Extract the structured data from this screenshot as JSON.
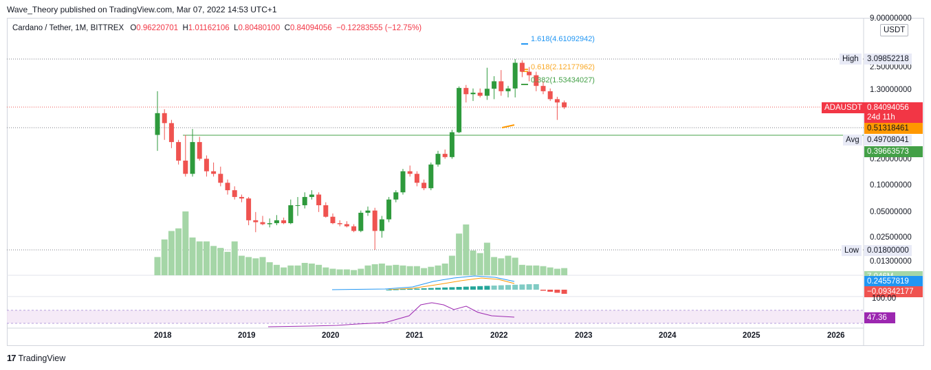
{
  "header": {
    "publish_line": "Wave_Theory published on TradingView.com, Mar 07, 2022 14:53 UTC+1"
  },
  "legend": {
    "symbol": "Cardano / Tether, 1M, BITTREX",
    "o_label": "O",
    "o_value": "0.96220701",
    "h_label": "H",
    "h_value": "1.01162106",
    "l_label": "L",
    "l_value": "0.80480100",
    "c_label": "C",
    "c_value": "0.84094056",
    "change": "−0.12283555 (−12.75%)"
  },
  "price_axis": {
    "currency": "USDT",
    "ticks": [
      "9.00000000",
      "2.50000000",
      "1.30000000",
      "0.20000000",
      "0.10000000",
      "0.05000000",
      "0.02500000",
      "0.01300000"
    ],
    "high_label": "High",
    "high_value": "3.09852218",
    "low_label": "Low",
    "low_value": "0.01800000",
    "avg_label": "Avg",
    "avg_value": "0.49708041",
    "symbol_tag": "ADAUSDT",
    "last_price": "0.84094056",
    "countdown": "24d 11h",
    "orange_tag": "0.51318461",
    "green_tag": "0.39663573",
    "volume_tag": "7.046M",
    "macd_tag1": "0.24557819",
    "macd_tag2": "−0.09342177",
    "rsi_upper": "100.00",
    "rsi_value": "47.36"
  },
  "fib_levels": {
    "f1618": "1.618(4.61092942)",
    "f0618": "0.618(2.12177962)",
    "f0382": "0.382(1.53434027)"
  },
  "time_axis": {
    "labels": [
      "2018",
      "2019",
      "2020",
      "2021",
      "2022",
      "2023",
      "2024",
      "2025",
      "2026"
    ]
  },
  "footer": {
    "brand": "TradingView"
  },
  "colors": {
    "up": "#26a69a",
    "up_candle": "#2e9a3c",
    "down": "#ef5350",
    "volume": "#a5d6a7",
    "fib1618": "#2196f3",
    "fib0618": "#f9a825",
    "fib0382": "#43a047",
    "rsi": "#9c27b0"
  },
  "chart_data": {
    "type": "candlestick",
    "title": "Cardano / Tether, 1M, BITTREX",
    "scale": "log",
    "ylim": [
      0.012,
      9.0
    ],
    "candles": [
      {
        "t": "2017-12",
        "o": 0.4,
        "h": 1.3,
        "l": 0.26,
        "c": 0.72
      },
      {
        "t": "2018-01",
        "o": 0.72,
        "h": 0.8,
        "l": 0.35,
        "c": 0.55
      },
      {
        "t": "2018-02",
        "o": 0.55,
        "h": 0.6,
        "l": 0.28,
        "c": 0.33
      },
      {
        "t": "2018-03",
        "o": 0.33,
        "h": 0.35,
        "l": 0.18,
        "c": 0.2
      },
      {
        "t": "2018-04",
        "o": 0.2,
        "h": 0.4,
        "l": 0.13,
        "c": 0.14
      },
      {
        "t": "2018-05",
        "o": 0.14,
        "h": 0.47,
        "l": 0.13,
        "c": 0.33
      },
      {
        "t": "2018-06",
        "o": 0.33,
        "h": 0.38,
        "l": 0.2,
        "c": 0.21
      },
      {
        "t": "2018-07",
        "o": 0.21,
        "h": 0.23,
        "l": 0.13,
        "c": 0.15
      },
      {
        "t": "2018-08",
        "o": 0.15,
        "h": 0.19,
        "l": 0.13,
        "c": 0.14
      },
      {
        "t": "2018-09",
        "o": 0.14,
        "h": 0.17,
        "l": 0.1,
        "c": 0.11
      },
      {
        "t": "2018-10",
        "o": 0.11,
        "h": 0.12,
        "l": 0.08,
        "c": 0.09
      },
      {
        "t": "2018-11",
        "o": 0.09,
        "h": 0.1,
        "l": 0.07,
        "c": 0.075
      },
      {
        "t": "2018-12",
        "o": 0.075,
        "h": 0.08,
        "l": 0.065,
        "c": 0.072
      },
      {
        "t": "2019-01",
        "o": 0.072,
        "h": 0.075,
        "l": 0.035,
        "c": 0.04
      },
      {
        "t": "2019-02",
        "o": 0.04,
        "h": 0.05,
        "l": 0.029,
        "c": 0.038
      },
      {
        "t": "2019-03",
        "o": 0.038,
        "h": 0.045,
        "l": 0.035,
        "c": 0.036
      },
      {
        "t": "2019-04",
        "o": 0.036,
        "h": 0.042,
        "l": 0.033,
        "c": 0.037
      },
      {
        "t": "2019-05",
        "o": 0.037,
        "h": 0.046,
        "l": 0.035,
        "c": 0.04
      },
      {
        "t": "2019-06",
        "o": 0.04,
        "h": 0.043,
        "l": 0.036,
        "c": 0.037
      },
      {
        "t": "2019-07",
        "o": 0.037,
        "h": 0.07,
        "l": 0.036,
        "c": 0.06
      },
      {
        "t": "2019-08",
        "o": 0.06,
        "h": 0.075,
        "l": 0.045,
        "c": 0.06
      },
      {
        "t": "2019-09",
        "o": 0.06,
        "h": 0.085,
        "l": 0.055,
        "c": 0.075
      },
      {
        "t": "2019-10",
        "o": 0.075,
        "h": 0.09,
        "l": 0.07,
        "c": 0.08
      },
      {
        "t": "2019-11",
        "o": 0.08,
        "h": 0.085,
        "l": 0.05,
        "c": 0.06
      },
      {
        "t": "2019-12",
        "o": 0.06,
        "h": 0.065,
        "l": 0.043,
        "c": 0.044
      },
      {
        "t": "2020-01",
        "o": 0.044,
        "h": 0.048,
        "l": 0.036,
        "c": 0.037
      },
      {
        "t": "2020-02",
        "o": 0.037,
        "h": 0.04,
        "l": 0.034,
        "c": 0.036
      },
      {
        "t": "2020-03",
        "o": 0.036,
        "h": 0.039,
        "l": 0.033,
        "c": 0.034
      },
      {
        "t": "2020-04",
        "o": 0.034,
        "h": 0.036,
        "l": 0.029,
        "c": 0.03
      },
      {
        "t": "2020-05",
        "o": 0.03,
        "h": 0.052,
        "l": 0.029,
        "c": 0.049
      },
      {
        "t": "2020-06",
        "o": 0.049,
        "h": 0.058,
        "l": 0.045,
        "c": 0.052
      },
      {
        "t": "2020-07",
        "o": 0.052,
        "h": 0.056,
        "l": 0.018,
        "c": 0.03
      },
      {
        "t": "2020-08",
        "o": 0.03,
        "h": 0.045,
        "l": 0.025,
        "c": 0.041
      },
      {
        "t": "2020-09",
        "o": 0.041,
        "h": 0.075,
        "l": 0.038,
        "c": 0.07
      },
      {
        "t": "2020-10",
        "o": 0.07,
        "h": 0.09,
        "l": 0.065,
        "c": 0.085
      },
      {
        "t": "2020-11",
        "o": 0.085,
        "h": 0.16,
        "l": 0.08,
        "c": 0.15
      },
      {
        "t": "2020-12",
        "o": 0.15,
        "h": 0.175,
        "l": 0.13,
        "c": 0.14
      },
      {
        "t": "2021-01",
        "o": 0.14,
        "h": 0.15,
        "l": 0.1,
        "c": 0.11
      },
      {
        "t": "2021-02",
        "o": 0.11,
        "h": 0.12,
        "l": 0.09,
        "c": 0.095
      },
      {
        "t": "2021-03",
        "o": 0.095,
        "h": 0.19,
        "l": 0.09,
        "c": 0.18
      },
      {
        "t": "2021-04",
        "o": 0.18,
        "h": 0.26,
        "l": 0.17,
        "c": 0.24
      },
      {
        "t": "2021-05",
        "o": 0.24,
        "h": 0.27,
        "l": 0.21,
        "c": 0.22
      },
      {
        "t": "2021-06",
        "o": 0.22,
        "h": 0.46,
        "l": 0.21,
        "c": 0.43
      },
      {
        "t": "2021-07",
        "o": 0.43,
        "h": 1.48,
        "l": 0.42,
        "c": 1.42
      },
      {
        "t": "2021-08",
        "o": 1.42,
        "h": 1.54,
        "l": 0.96,
        "c": 1.2
      },
      {
        "t": "2021-09",
        "o": 1.2,
        "h": 1.4,
        "l": 1.0,
        "c": 1.25
      },
      {
        "t": "2021-10",
        "o": 1.25,
        "h": 1.4,
        "l": 1.1,
        "c": 1.15
      },
      {
        "t": "2021-11",
        "o": 1.15,
        "h": 2.45,
        "l": 1.03,
        "c": 1.39
      },
      {
        "t": "2021-12",
        "o": 1.39,
        "h": 1.95,
        "l": 1.05,
        "c": 1.7
      },
      {
        "t": "2022-01",
        "o": 1.7,
        "h": 2.3,
        "l": 1.15,
        "c": 1.3
      },
      {
        "t": "2022-02",
        "o": 1.3,
        "h": 1.5,
        "l": 1.1,
        "c": 1.4
      },
      {
        "t": "2022-03",
        "o": 1.4,
        "h": 3.099,
        "l": 1.1,
        "c": 2.8
      },
      {
        "t": "2022-04",
        "o": 2.8,
        "h": 3.0,
        "l": 1.9,
        "c": 2.2
      },
      {
        "t": "2022-05",
        "o": 2.2,
        "h": 2.5,
        "l": 1.7,
        "c": 2.0
      },
      {
        "t": "2022-06",
        "o": 2.0,
        "h": 2.2,
        "l": 1.3,
        "c": 1.5
      },
      {
        "t": "2022-07",
        "o": 1.5,
        "h": 1.7,
        "l": 1.2,
        "c": 1.3
      },
      {
        "t": "2022-08",
        "o": 1.3,
        "h": 1.4,
        "l": 1.0,
        "c": 1.05
      },
      {
        "t": "2022-09",
        "o": 1.05,
        "h": 1.12,
        "l": 0.6,
        "c": 0.96
      },
      {
        "t": "2022-10",
        "o": 0.962,
        "h": 1.012,
        "l": 0.805,
        "c": 0.841
      }
    ],
    "volume": [
      0.28,
      0.55,
      0.68,
      0.72,
      0.98,
      0.58,
      0.52,
      0.52,
      0.45,
      0.42,
      0.36,
      0.52,
      0.3,
      0.28,
      0.26,
      0.28,
      0.2,
      0.16,
      0.12,
      0.15,
      0.15,
      0.19,
      0.18,
      0.16,
      0.12,
      0.1,
      0.09,
      0.09,
      0.08,
      0.1,
      0.15,
      0.17,
      0.18,
      0.15,
      0.16,
      0.15,
      0.14,
      0.14,
      0.11,
      0.13,
      0.15,
      0.18,
      0.3,
      0.64,
      0.78,
      0.38,
      0.34,
      0.5,
      0.28,
      0.26,
      0.3,
      0.27,
      0.16,
      0.15,
      0.15,
      0.14,
      0.12,
      0.1,
      0.11,
      0.04
    ],
    "avg_line": 0.49708041
  }
}
